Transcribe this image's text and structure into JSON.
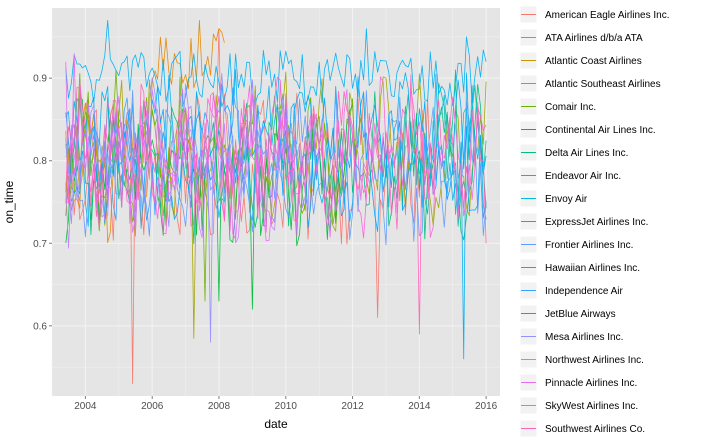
{
  "chart_data": {
    "type": "line",
    "xlabel": "date",
    "ylabel": "on_time",
    "xlim": [
      "2003-01-01",
      "2016-06-01"
    ],
    "ylim": [
      0.515,
      0.985
    ],
    "x_ticks": [
      "2004",
      "2006",
      "2008",
      "2010",
      "2012",
      "2014",
      "2016"
    ],
    "y_ticks": [
      "0.6",
      "0.7",
      "0.8",
      "0.9"
    ],
    "grid": true,
    "legend_position": "right",
    "series": [
      {
        "name": "American Eagle Airlines Inc.",
        "color": "#F8766D",
        "start": "2003-06",
        "end": "2014-06",
        "points": [
          [
            "2005-06",
            0.53
          ],
          [
            "2012-10",
            0.61
          ],
          [
            "2008-01",
            0.96
          ]
        ]
      },
      {
        "name": "ATA Airlines d/b/a ATA",
        "color": "#E58700",
        "start": "2003-06",
        "end": "2008-03",
        "points": [
          [
            "2006-09",
            0.93
          ],
          [
            "2007-06",
            0.97
          ],
          [
            "2008-01",
            0.96
          ]
        ]
      },
      {
        "name": "Atlantic Coast Airlines",
        "color": "#C99800",
        "start": "2003-06",
        "end": "2004-06",
        "points": [
          [
            "2003-09",
            0.83
          ]
        ]
      },
      {
        "name": "Atlantic Southeast Airlines",
        "color": "#A3A500",
        "start": "2003-06",
        "end": "2016-01",
        "points": [
          [
            "2007-04",
            0.585
          ]
        ]
      },
      {
        "name": "Comair Inc.",
        "color": "#6BB100",
        "start": "2003-06",
        "end": "2012-03",
        "points": [
          [
            "2007-08",
            0.63
          ]
        ]
      },
      {
        "name": "Continental Air Lines Inc.",
        "color": "#00BA38",
        "start": "2003-06",
        "end": "2012-01",
        "points": [
          [
            "2008-01",
            0.63
          ],
          [
            "2009-01",
            0.62
          ]
        ]
      },
      {
        "name": "Delta Air Lines Inc.",
        "color": "#00BF7D",
        "start": "2003-06",
        "end": "2016-01",
        "points": [
          [
            "2015-02",
            0.91
          ]
        ]
      },
      {
        "name": "Endeavor Air Inc.",
        "color": "#00C0AF",
        "start": "2013-01",
        "end": "2016-01",
        "points": []
      },
      {
        "name": "Envoy Air",
        "color": "#00BCD8",
        "start": "2014-01",
        "end": "2016-01",
        "points": []
      },
      {
        "name": "ExpressJet Airlines Inc.",
        "color": "#00B0F6",
        "start": "2003-06",
        "end": "2016-01",
        "points": [
          [
            "2015-05",
            0.56
          ]
        ]
      },
      {
        "name": "Frontier Airlines Inc.",
        "color": "#619CFF",
        "start": "2003-06",
        "end": "2016-01",
        "points": []
      },
      {
        "name": "Hawaiian Airlines Inc.",
        "color": "#00B0F6",
        "start": "2003-06",
        "end": "2016-01",
        "points": [
          [
            "2004-09",
            0.97
          ],
          [
            "2012-06",
            0.96
          ],
          [
            "2015-06",
            0.95
          ],
          [
            "2016-01",
            0.92
          ]
        ]
      },
      {
        "name": "Independence Air",
        "color": "#35A2FF",
        "start": "2004-06",
        "end": "2006-01",
        "points": []
      },
      {
        "name": "JetBlue Airways",
        "color": "#00A5FF",
        "start": "2003-06",
        "end": "2016-01",
        "points": []
      },
      {
        "name": "Mesa Airlines Inc.",
        "color": "#9590FF",
        "start": "2003-06",
        "end": "2011-01",
        "points": [
          [
            "2007-10",
            0.58
          ]
        ]
      },
      {
        "name": "Northwest Airlines Inc.",
        "color": "#C77CFF",
        "start": "2003-06",
        "end": "2009-12",
        "points": []
      },
      {
        "name": "Pinnacle Airlines Inc.",
        "color": "#E76BF3",
        "start": "2003-06",
        "end": "2012-12",
        "points": [
          [
            "2003-06",
            0.92
          ],
          [
            "2003-09",
            0.93
          ]
        ]
      },
      {
        "name": "SkyWest Airlines Inc.",
        "color": "#FA62DB",
        "start": "2003-06",
        "end": "2016-01",
        "points": []
      },
      {
        "name": "Southwest Airlines Co.",
        "color": "#FF62BC",
        "start": "2003-06",
        "end": "2016-01",
        "points": [
          [
            "2014-01",
            0.59
          ],
          [
            "2016-01",
            0.7
          ]
        ]
      }
    ]
  }
}
